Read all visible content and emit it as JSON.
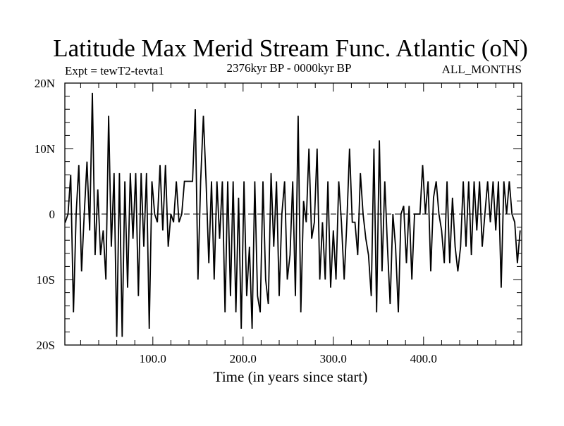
{
  "chart_data": {
    "type": "line",
    "title": "Latitude Max Merid Stream Func. Atlantic (oN)",
    "subtitle_left": "Expt = tewT2-tevta1",
    "subtitle_center": "2376kyr BP - 0000kyr BP",
    "subtitle_right": "ALL_MONTHS",
    "xlabel": "Time (in years since start)",
    "ylabel": "",
    "xlim": [
      2.5,
      508.75
    ],
    "ylim": [
      -20,
      20
    ],
    "x_ticks": [
      100,
      200,
      300,
      400
    ],
    "x_tick_labels": [
      "100.0",
      "200.0",
      "300.0",
      "400.0"
    ],
    "y_ticks": [
      20,
      10,
      0,
      -10,
      -20
    ],
    "y_tick_labels": [
      "20N",
      "10N",
      "0",
      "10S",
      "20S"
    ],
    "x_minor_step": 20,
    "y_minor_step": 2,
    "zero_line": "dashed",
    "grid": false,
    "line_color": "#000000",
    "series": [
      {
        "name": "Latitude Max Merid Stream Func",
        "x_start": 3,
        "x_step": 3,
        "values": [
          -1.25,
          0,
          6,
          -15,
          0,
          7.5,
          -8.75,
          0,
          8,
          -2.5,
          18.5,
          -6.25,
          3.75,
          -6.25,
          -2.5,
          -10,
          15,
          -5,
          6.25,
          -18.75,
          6.25,
          -18.75,
          5,
          -11.25,
          6.25,
          -3.75,
          6.25,
          -12.5,
          6.25,
          -5,
          6.25,
          -17.5,
          5,
          0,
          -1.25,
          7.5,
          -2.5,
          7.5,
          -5,
          0,
          -1.25,
          5,
          -1.25,
          0,
          5,
          5,
          5,
          5,
          16,
          -10,
          5,
          15,
          5,
          -7.5,
          5,
          -10,
          5,
          -3.75,
          5,
          -15,
          5,
          -12.5,
          5,
          -15,
          2.5,
          -17.5,
          5,
          -12.5,
          -5,
          -17.5,
          5,
          -12.5,
          -15,
          5,
          -10,
          -13.75,
          6.25,
          -5,
          5,
          -12.5,
          0,
          5,
          -10,
          -6.25,
          5,
          -12.5,
          15,
          -15,
          2,
          -1.25,
          10,
          -3.75,
          -1.25,
          10,
          -10,
          -1.25,
          -10,
          5,
          -11.25,
          -2.5,
          -10,
          5,
          -1.25,
          -10,
          -1.25,
          10,
          -1.25,
          -1.25,
          -6.25,
          6.25,
          0,
          -3.75,
          -6.25,
          -12.5,
          10,
          -15,
          11.25,
          -8.75,
          5,
          -5,
          -13.75,
          0,
          -5,
          -15,
          0,
          1.25,
          -7.5,
          1.25,
          -10,
          0,
          0,
          0,
          7.5,
          0,
          5,
          -8.75,
          2.5,
          5,
          0,
          -2.5,
          -7.5,
          5,
          -7.5,
          2.5,
          -5,
          -8.75,
          -5,
          5,
          -5,
          5,
          -6.25,
          5,
          -2.5,
          5,
          -5,
          0,
          5,
          -1.25,
          5,
          -2.5,
          5,
          -11.25,
          5,
          0,
          5,
          0,
          -1.25,
          -7.5,
          -2.5
        ]
      }
    ]
  }
}
